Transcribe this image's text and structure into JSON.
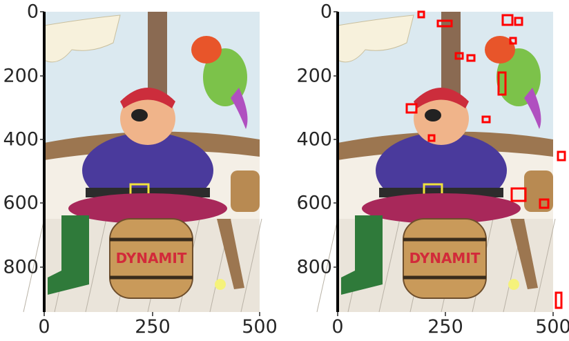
{
  "panels": [
    {
      "name": "left",
      "image": "pirate-with-parrot-on-dynamite-barrel-original",
      "x_ticks": [
        "0",
        "250",
        "500"
      ],
      "y_ticks": [
        "0",
        "200",
        "400",
        "600",
        "800"
      ]
    },
    {
      "name": "right",
      "image": "pirate-with-parrot-on-dynamite-barrel-with-red-difference-boxes",
      "x_ticks": [
        "0",
        "250",
        "500"
      ],
      "y_ticks": [
        "0",
        "200",
        "400",
        "600",
        "800"
      ]
    }
  ],
  "barrel_lettering": "DYNAMIT",
  "colors": {
    "highlight_boxes": "#ff0000",
    "axis_text": "#262626",
    "sky": "#dbe9f0",
    "coat": "#4a3a9c",
    "trousers": "#a8285a",
    "barrel": "#c99a5a",
    "boot": "#2f7a3a"
  }
}
